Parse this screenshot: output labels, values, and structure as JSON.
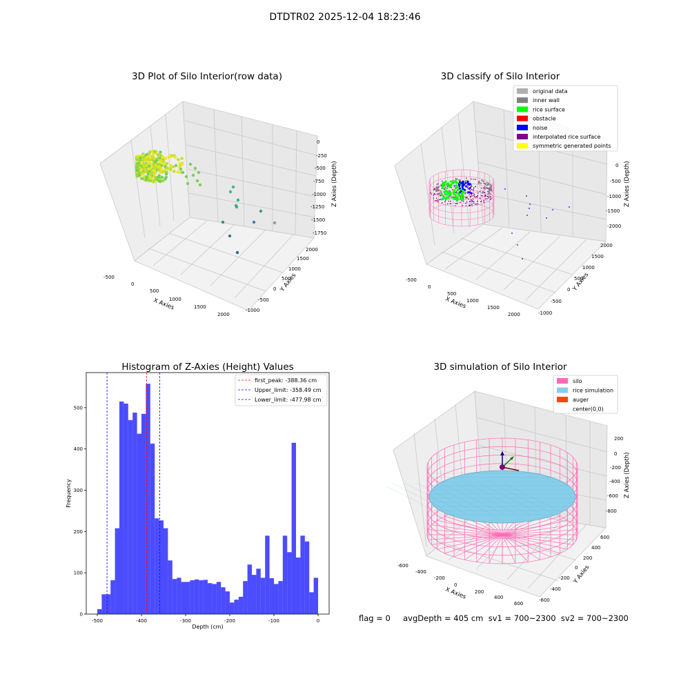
{
  "suptitle": "DTDTR02 2025-12-04 18:23:46",
  "footer": "flag = 0     avgDepth = 405 cm  sv1 = 700~2300  sv2 = 700~2300",
  "panel1": {
    "title": "3D Plot of Silo Interior(row data)",
    "xlabel": "X Axies",
    "ylabel": "Y Axies",
    "zlabel": "Z Axies (Depth)",
    "xticks": [
      "-500",
      "0",
      "500",
      "1000",
      "1500",
      "2000"
    ],
    "yticks": [
      "2000",
      "1500",
      "1000",
      "500",
      "0",
      "-500",
      "-1000"
    ],
    "zticks": [
      "0",
      "-250",
      "-500",
      "-750",
      "-1000",
      "-1250",
      "-1500",
      "-1750"
    ]
  },
  "panel2": {
    "title": "3D classify of Silo Interior",
    "xlabel": "X Axies",
    "ylabel": "Y Axies",
    "zlabel": "Z Axies (Depth)",
    "xticks": [
      "-500",
      "0",
      "500",
      "1000",
      "1500",
      "2000"
    ],
    "yticks": [
      "2000",
      "1500",
      "1000",
      "500",
      "0",
      "-500",
      "-1000"
    ],
    "zticks": [
      "0",
      "-500",
      "-1000",
      "-1500",
      "-2000"
    ],
    "legend": [
      {
        "label": "original data",
        "color": "#b0b0b0"
      },
      {
        "label": "inner wall",
        "color": "#808080"
      },
      {
        "label": "rice surface",
        "color": "#00ff00"
      },
      {
        "label": "obstacle",
        "color": "#ff0000"
      },
      {
        "label": "noise",
        "color": "#0000ff"
      },
      {
        "label": "interpolated rice surface",
        "color": "#800080"
      },
      {
        "label": "symmetric generated points",
        "color": "#ffff00"
      }
    ]
  },
  "panel4": {
    "title": "3D simulation of Silo Interior",
    "xlabel": "X Axies",
    "ylabel": "Y Axies",
    "zlabel": "Z Axies (Depth)",
    "xticks": [
      "-600",
      "-400",
      "-200",
      "0",
      "200",
      "400",
      "600"
    ],
    "yticks": [
      "600",
      "400",
      "200",
      "0",
      "-200",
      "-400",
      "-600"
    ],
    "zticks": [
      "200",
      "0",
      "-200",
      "-400",
      "-600",
      "-800"
    ],
    "legend": [
      {
        "label": "silo",
        "color": "#ff69b4"
      },
      {
        "label": "rice simulation",
        "color": "#87ceeb"
      },
      {
        "label": "auger",
        "color": "#ff4500"
      },
      {
        "label": "center(0,0)",
        "color": "none"
      }
    ]
  },
  "chart_data": {
    "type": "bar",
    "title": "Histogram of Z-Axies (Height) Values",
    "xlabel": "Depth (cm)",
    "ylabel": "Frequency",
    "xlim": [
      -525,
      25
    ],
    "ylim": [
      0,
      585
    ],
    "bar_color": "#0000ff",
    "bin_start": -500,
    "bin_width": 10,
    "values": [
      12,
      48,
      48,
      82,
      208,
      515,
      510,
      470,
      488,
      437,
      485,
      558,
      413,
      232,
      227,
      208,
      130,
      85,
      88,
      78,
      78,
      82,
      84,
      82,
      83,
      75,
      73,
      78,
      65,
      55,
      28,
      35,
      42,
      80,
      120,
      95,
      110,
      88,
      190,
      87,
      73,
      80,
      190,
      150,
      415,
      137,
      190,
      176,
      53,
      88
    ],
    "xticks": [
      -500,
      -400,
      -300,
      -200,
      -100,
      0
    ],
    "yticks": [
      0,
      100,
      200,
      300,
      400,
      500
    ],
    "lines": [
      {
        "label": "first_peak: -388.36 cm",
        "x": -388.36,
        "color": "#ff0000"
      },
      {
        "label": "Upper_limit: -358.49 cm",
        "x": -358.49,
        "color": "#0000ff"
      },
      {
        "label": "Lower_limit: -477.98 cm",
        "x": -477.98,
        "color": "#0000ff"
      }
    ]
  }
}
